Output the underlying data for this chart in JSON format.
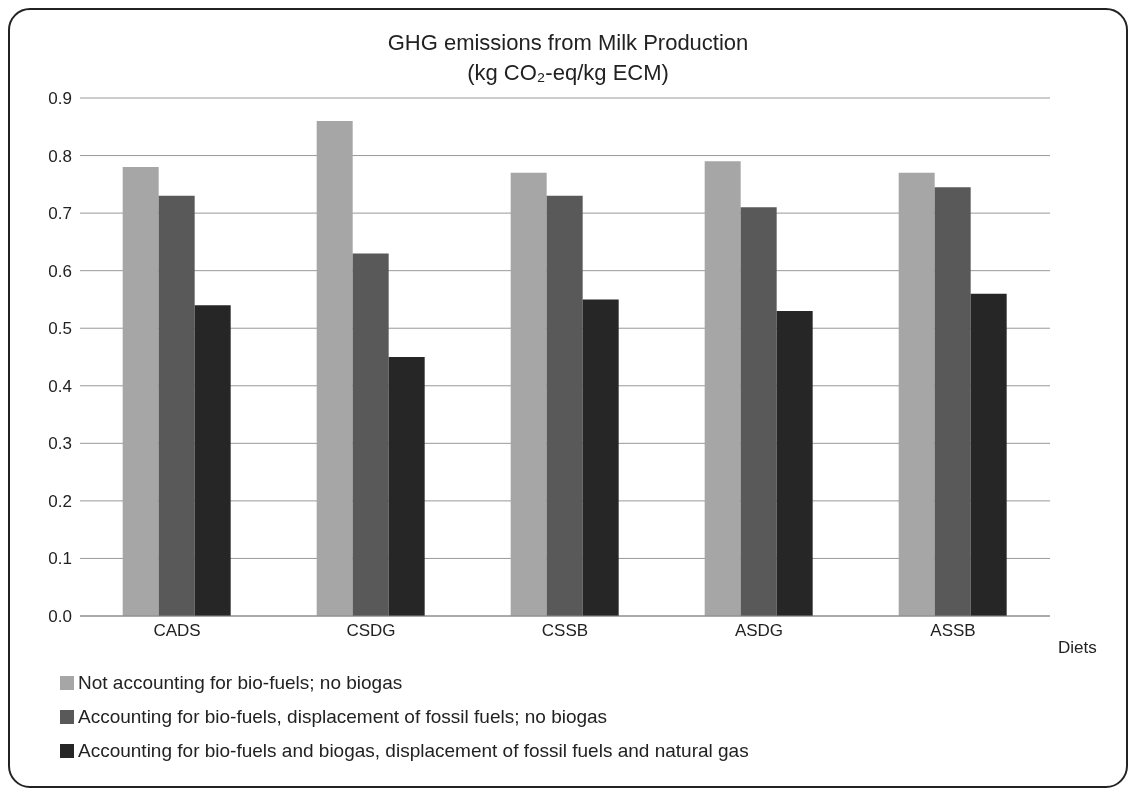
{
  "chart_data": {
    "type": "bar",
    "title": "GHG emissions from Milk Production",
    "subtitle": "(kg CO₂-eq/kg ECM)",
    "xlabel": "Diets",
    "categories": [
      "CADS",
      "CSDG",
      "CSSB",
      "ASDG",
      "ASSB"
    ],
    "series": [
      {
        "name": "Not accounting for bio-fuels; no biogas",
        "color": "#a6a6a6",
        "values": [
          0.78,
          0.86,
          0.77,
          0.79,
          0.77
        ]
      },
      {
        "name": "Accounting for bio-fuels, displacement of fossil fuels; no biogas",
        "color": "#595959",
        "values": [
          0.73,
          0.63,
          0.73,
          0.71,
          0.745
        ]
      },
      {
        "name": "Accounting for bio-fuels and biogas, displacement of fossil fuels and natural gas",
        "color": "#262626",
        "values": [
          0.54,
          0.45,
          0.55,
          0.53,
          0.56
        ]
      }
    ],
    "ylim": [
      0,
      0.9
    ],
    "yticks": [
      {
        "value": 0,
        "label": "0.0"
      },
      0.1,
      0.2,
      0.3,
      0.4,
      0.5,
      0.6,
      0.7,
      0.8,
      0.9
    ],
    "grid": "y",
    "legend": "bottom"
  }
}
